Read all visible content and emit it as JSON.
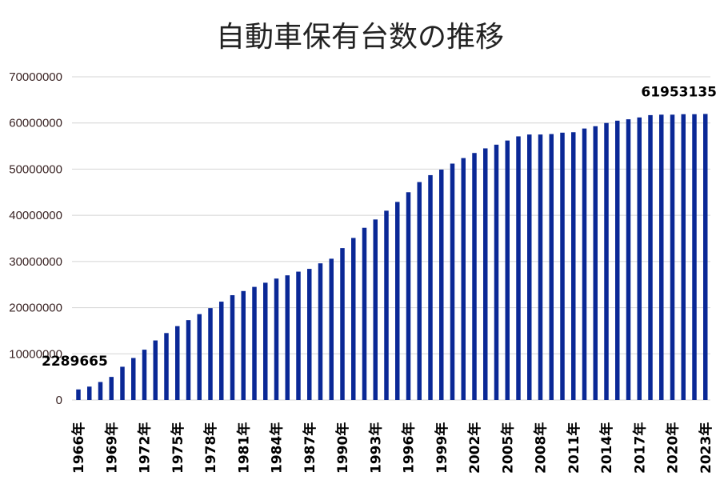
{
  "chart_data": {
    "type": "bar",
    "title": "自動車保有台数の推移",
    "xlabel": "",
    "ylabel": "",
    "ylim": [
      0,
      70000000
    ],
    "yticks": [
      "0",
      "10000000",
      "20000000",
      "30000000",
      "40000000",
      "50000000",
      "60000000",
      "70000000"
    ],
    "grid": true,
    "legend": "none",
    "bar_color": "#0a2896",
    "categories": [
      "1966年",
      "1967年",
      "1968年",
      "1969年",
      "1970年",
      "1971年",
      "1972年",
      "1973年",
      "1974年",
      "1975年",
      "1976年",
      "1977年",
      "1978年",
      "1979年",
      "1980年",
      "1981年",
      "1982年",
      "1983年",
      "1984年",
      "1985年",
      "1986年",
      "1987年",
      "1988年",
      "1989年",
      "1990年",
      "1991年",
      "1992年",
      "1993年",
      "1994年",
      "1995年",
      "1996年",
      "1997年",
      "1998年",
      "1999年",
      "2000年",
      "2001年",
      "2002年",
      "2003年",
      "2004年",
      "2005年",
      "2006年",
      "2007年",
      "2008年",
      "2009年",
      "2010年",
      "2011年",
      "2012年",
      "2013年",
      "2014年",
      "2015年",
      "2016年",
      "2017年",
      "2018年",
      "2019年",
      "2020年",
      "2021年",
      "2022年",
      "2023年"
    ],
    "xtick_labels": [
      "1966年",
      "1969年",
      "1972年",
      "1975年",
      "1978年",
      "1981年",
      "1984年",
      "1987年",
      "1990年",
      "1993年",
      "1996年",
      "1999年",
      "2002年",
      "2005年",
      "2008年",
      "2011年",
      "2014年",
      "2017年",
      "2020年",
      "2023年"
    ],
    "values": [
      2289665,
      2900000,
      3900000,
      5000000,
      7200000,
      9100000,
      10900000,
      12900000,
      14500000,
      16000000,
      17300000,
      18600000,
      19900000,
      21300000,
      22700000,
      23600000,
      24500000,
      25400000,
      26300000,
      27000000,
      27800000,
      28400000,
      29600000,
      30600000,
      32900000,
      35100000,
      37300000,
      39100000,
      41000000,
      42900000,
      45000000,
      47200000,
      48700000,
      49900000,
      51200000,
      52400000,
      53500000,
      54500000,
      55300000,
      56200000,
      57100000,
      57500000,
      57500000,
      57600000,
      57900000,
      58000000,
      58800000,
      59300000,
      60000000,
      60500000,
      60800000,
      61200000,
      61700000,
      61800000,
      61800000,
      61900000,
      61900000,
      61953135
    ],
    "data_labels": [
      {
        "category": "1966年",
        "text": "2289665"
      },
      {
        "category": "2023年",
        "text": "61953135"
      }
    ]
  }
}
